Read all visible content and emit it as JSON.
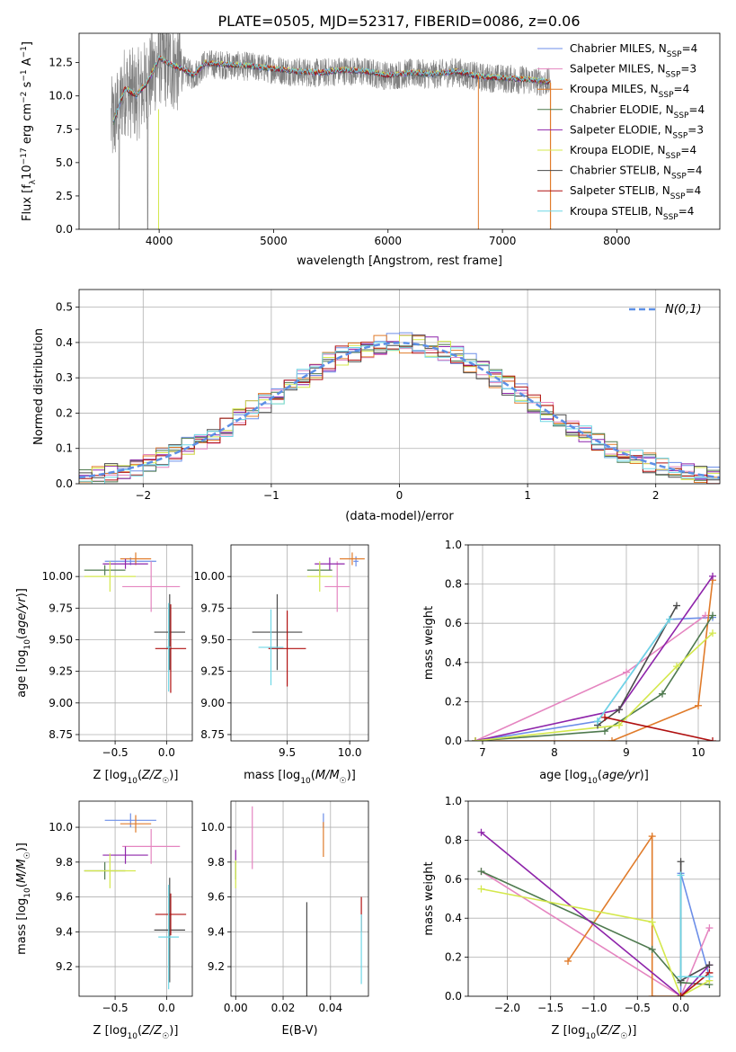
{
  "figure": {
    "title": "PLATE=0505, MJD=52317, FIBERID=0086, z=0.06"
  },
  "colors": {
    "Chabrier MILES": "#6c8ee8",
    "Salpeter MILES": "#e585c0",
    "Kroupa MILES": "#e07b2a",
    "Chabrier ELODIE": "#4f7a4f",
    "Salpeter ELODIE": "#8e24aa",
    "Kroupa ELODIE": "#d4e84c",
    "Chabrier STELIB": "#4a4a4a",
    "Salpeter STELIB": "#b01010",
    "Kroupa STELIB": "#6fd7e6",
    "data": "#7f7f7f",
    "normal": "#5c8fe6"
  },
  "chart_data": [
    {
      "id": "spectrum",
      "type": "line",
      "xlabel": "wavelength [Angstrom, rest frame]",
      "ylabel": "Flux [f_λ 10^-17 erg cm^-2 s^-1 A^-1]",
      "xlim": [
        3300,
        8900
      ],
      "ylim": [
        0,
        14.7
      ],
      "xticks": [
        4000,
        5000,
        6000,
        7000,
        8000
      ],
      "yticks": [
        0.0,
        2.5,
        5.0,
        7.5,
        10.0,
        12.5
      ],
      "grid": false,
      "legend_position": "top-right",
      "legend": [
        {
          "model": "Chabrier MILES",
          "nssp": "4"
        },
        {
          "model": "Salpeter MILES",
          "nssp": "3"
        },
        {
          "model": "Kroupa MILES",
          "nssp": "4"
        },
        {
          "model": "Chabrier ELODIE",
          "nssp": "4"
        },
        {
          "model": "Salpeter ELODIE",
          "nssp": "3"
        },
        {
          "model": "Kroupa ELODIE",
          "nssp": "4"
        },
        {
          "model": "Chabrier STELIB",
          "nssp": "4"
        },
        {
          "model": "Salpeter STELIB",
          "nssp": "4"
        },
        {
          "model": "Kroupa STELIB",
          "nssp": "4"
        }
      ],
      "data_range": [
        3580,
        7420
      ],
      "model_spectrum": {
        "wavelength": [
          3600,
          3700,
          3800,
          3900,
          4000,
          4100,
          4200,
          4300,
          4400,
          4600,
          4800,
          5000,
          5200,
          5400,
          5600,
          5800,
          6000,
          6200,
          6400,
          6600,
          6800,
          7000,
          7200,
          7400
        ],
        "flux": [
          8.0,
          10.5,
          10.0,
          11.0,
          12.8,
          12.3,
          12.0,
          11.5,
          12.4,
          12.3,
          12.2,
          12.0,
          11.8,
          11.7,
          11.9,
          11.8,
          11.5,
          11.7,
          11.6,
          11.8,
          11.4,
          11.3,
          11.2,
          11.0
        ]
      }
    },
    {
      "id": "residuals",
      "type": "line",
      "xlabel": "(data-model)/error",
      "ylabel": "Normed distribution",
      "xlim": [
        -2.5,
        2.5
      ],
      "ylim": [
        0,
        0.55
      ],
      "xticks": [
        -2,
        -1,
        0,
        1,
        2
      ],
      "yticks": [
        0.0,
        0.1,
        0.2,
        0.3,
        0.4,
        0.5
      ],
      "grid": true,
      "legend": "N(0,1)",
      "legend_position": "top-right",
      "bin_width": 0.1
    },
    {
      "id": "age_vs_Z",
      "type": "scatter",
      "xlabel": "Z [log10(Z/Z☉)]",
      "ylabel": "age [log10(age/yr)]",
      "xlim": [
        -0.85,
        0.25
      ],
      "ylim": [
        8.7,
        10.25
      ],
      "xticks": [
        -0.5,
        0.0
      ],
      "yticks": [
        8.75,
        9.0,
        9.25,
        9.5,
        9.75,
        10.0
      ],
      "grid": true,
      "points": [
        {
          "model": "Chabrier MILES",
          "x": -0.35,
          "y": 10.12,
          "xerr": 0.25,
          "yerr": 0.03
        },
        {
          "model": "Salpeter MILES",
          "x": -0.15,
          "y": 9.92,
          "xerr": 0.28,
          "yerr": 0.2
        },
        {
          "model": "Kroupa MILES",
          "x": -0.3,
          "y": 10.14,
          "xerr": 0.15,
          "yerr": 0.05
        },
        {
          "model": "Chabrier ELODIE",
          "x": -0.6,
          "y": 10.05,
          "xerr": 0.2,
          "yerr": 0.04
        },
        {
          "model": "Salpeter ELODIE",
          "x": -0.4,
          "y": 10.1,
          "xerr": 0.22,
          "yerr": 0.04
        },
        {
          "model": "Kroupa ELODIE",
          "x": -0.55,
          "y": 10.0,
          "xerr": 0.25,
          "yerr": 0.12
        },
        {
          "model": "Chabrier STELIB",
          "x": 0.03,
          "y": 9.56,
          "xerr": 0.15,
          "yerr": 0.3
        },
        {
          "model": "Salpeter STELIB",
          "x": 0.04,
          "y": 9.43,
          "xerr": 0.15,
          "yerr": 0.35
        },
        {
          "model": "Kroupa STELIB",
          "x": 0.02,
          "y": 9.44,
          "xerr": 0.02,
          "yerr": 0.35
        }
      ]
    },
    {
      "id": "age_vs_mass",
      "type": "scatter",
      "xlabel": "mass [log10(M/M☉)]",
      "ylabel": "",
      "xlim": [
        9.05,
        10.15
      ],
      "ylim": [
        8.7,
        10.25
      ],
      "xticks": [
        9.5,
        10.0
      ],
      "yticks": [
        8.75,
        9.0,
        9.25,
        9.5,
        9.75,
        10.0
      ],
      "grid": true,
      "points": [
        {
          "model": "Chabrier MILES",
          "x": 10.05,
          "y": 10.12,
          "xerr": 0.02,
          "yerr": 0.04
        },
        {
          "model": "Salpeter MILES",
          "x": 9.9,
          "y": 9.92,
          "xerr": 0.1,
          "yerr": 0.2
        },
        {
          "model": "Kroupa MILES",
          "x": 10.02,
          "y": 10.14,
          "xerr": 0.1,
          "yerr": 0.05
        },
        {
          "model": "Chabrier ELODIE",
          "x": 9.76,
          "y": 10.05,
          "xerr": 0.1,
          "yerr": 0.05
        },
        {
          "model": "Salpeter ELODIE",
          "x": 9.84,
          "y": 10.1,
          "xerr": 0.12,
          "yerr": 0.05
        },
        {
          "model": "Kroupa ELODIE",
          "x": 9.76,
          "y": 10.0,
          "xerr": 0.1,
          "yerr": 0.12
        },
        {
          "model": "Chabrier STELIB",
          "x": 9.42,
          "y": 9.56,
          "xerr": 0.2,
          "yerr": 0.3
        },
        {
          "model": "Salpeter STELIB",
          "x": 9.5,
          "y": 9.43,
          "xerr": 0.15,
          "yerr": 0.3
        },
        {
          "model": "Kroupa STELIB",
          "x": 9.37,
          "y": 9.44,
          "xerr": 0.1,
          "yerr": 0.3
        }
      ]
    },
    {
      "id": "weight_vs_age",
      "type": "line",
      "xlabel": "age [log10(age/yr)]",
      "ylabel": "mass weight",
      "xlim": [
        6.8,
        10.3
      ],
      "ylim": [
        0,
        1.0
      ],
      "xticks": [
        7,
        8,
        9,
        10
      ],
      "yticks": [
        0.0,
        0.2,
        0.4,
        0.6,
        0.8,
        1.0
      ],
      "grid": true,
      "series": [
        {
          "model": "Chabrier MILES",
          "x": [
            6.9,
            8.6,
            9.6,
            10.2
          ],
          "y": [
            0.0,
            0.1,
            0.62,
            0.63
          ]
        },
        {
          "model": "Salpeter MILES",
          "x": [
            6.9,
            9.0,
            10.1
          ],
          "y": [
            0.0,
            0.35,
            0.64
          ]
        },
        {
          "model": "Kroupa MILES",
          "x": [
            6.9,
            8.8,
            10.0,
            10.2
          ],
          "y": [
            0.0,
            0.0,
            0.18,
            0.82
          ]
        },
        {
          "model": "Chabrier ELODIE",
          "x": [
            6.9,
            8.7,
            9.5,
            10.2
          ],
          "y": [
            0.0,
            0.05,
            0.24,
            0.64
          ]
        },
        {
          "model": "Salpeter ELODIE",
          "x": [
            6.9,
            8.9,
            10.2
          ],
          "y": [
            0.0,
            0.16,
            0.84
          ]
        },
        {
          "model": "Kroupa ELODIE",
          "x": [
            6.9,
            8.9,
            9.7,
            10.2
          ],
          "y": [
            0.0,
            0.08,
            0.38,
            0.55
          ]
        },
        {
          "model": "Chabrier STELIB",
          "x": [
            8.6,
            8.9,
            9.7
          ],
          "y": [
            0.08,
            0.16,
            0.69
          ]
        },
        {
          "model": "Salpeter STELIB",
          "x": [
            8.7,
            10.2
          ],
          "y": [
            0.12,
            0.0
          ]
        },
        {
          "model": "Kroupa STELIB",
          "x": [
            8.6,
            9.6
          ],
          "y": [
            0.1,
            0.62
          ]
        }
      ]
    },
    {
      "id": "mass_vs_Z",
      "type": "scatter",
      "xlabel": "Z [log10(Z/Z☉)]",
      "ylabel": "mass [log10(M/M☉)]",
      "xlim": [
        -0.85,
        0.25
      ],
      "ylim": [
        9.03,
        10.15
      ],
      "xticks": [
        -0.5,
        0.0
      ],
      "yticks": [
        9.2,
        9.4,
        9.6,
        9.8,
        10.0
      ],
      "grid": true,
      "points": [
        {
          "model": "Chabrier MILES",
          "x": -0.35,
          "y": 10.04,
          "xerr": 0.25,
          "yerr": 0.04
        },
        {
          "model": "Salpeter MILES",
          "x": -0.15,
          "y": 9.89,
          "xerr": 0.28,
          "yerr": 0.1
        },
        {
          "model": "Kroupa MILES",
          "x": -0.3,
          "y": 10.02,
          "xerr": 0.15,
          "yerr": 0.05
        },
        {
          "model": "Chabrier ELODIE",
          "x": -0.6,
          "y": 9.75,
          "xerr": 0.2,
          "yerr": 0.05
        },
        {
          "model": "Salpeter ELODIE",
          "x": -0.4,
          "y": 9.84,
          "xerr": 0.22,
          "yerr": 0.05
        },
        {
          "model": "Kroupa ELODIE",
          "x": -0.55,
          "y": 9.75,
          "xerr": 0.25,
          "yerr": 0.1
        },
        {
          "model": "Chabrier STELIB",
          "x": 0.03,
          "y": 9.41,
          "xerr": 0.15,
          "yerr": 0.3
        },
        {
          "model": "Salpeter STELIB",
          "x": 0.04,
          "y": 9.5,
          "xerr": 0.15,
          "yerr": 0.12
        },
        {
          "model": "Kroupa STELIB",
          "x": 0.02,
          "y": 9.37,
          "xerr": 0.1,
          "yerr": 0.3
        }
      ]
    },
    {
      "id": "mass_vs_ebv",
      "type": "scatter",
      "xlabel": "E(B-V)",
      "ylabel": "",
      "xlim": [
        -0.002,
        0.056
      ],
      "ylim": [
        9.03,
        10.15
      ],
      "xticks": [
        0.0,
        0.02,
        0.04
      ],
      "yticks": [
        9.2,
        9.4,
        9.6,
        9.8,
        10.0
      ],
      "grid": true,
      "points": [
        {
          "model": "Chabrier MILES",
          "x": 0.037,
          "y": 10.04,
          "yerr": 0.04
        },
        {
          "model": "Salpeter MILES",
          "x": 0.007,
          "y": 9.94,
          "yerr": 0.18
        },
        {
          "model": "Kroupa MILES",
          "x": 0.037,
          "y": 9.93,
          "yerr": 0.1
        },
        {
          "model": "Chabrier ELODIE",
          "x": 0.0,
          "y": 9.75,
          "yerr": 0.05
        },
        {
          "model": "Salpeter ELODIE",
          "x": 0.0,
          "y": 9.84,
          "yerr": 0.03
        },
        {
          "model": "Kroupa ELODIE",
          "x": 0.0,
          "y": 9.73,
          "yerr": 0.08
        },
        {
          "model": "Chabrier STELIB",
          "x": 0.03,
          "y": 9.25,
          "yerr": 0.32
        },
        {
          "model": "Salpeter STELIB",
          "x": 0.053,
          "y": 9.5,
          "yerr": 0.1
        },
        {
          "model": "Kroupa STELIB",
          "x": 0.053,
          "y": 9.3,
          "yerr": 0.2
        }
      ]
    },
    {
      "id": "weight_vs_Z",
      "type": "line",
      "xlabel": "Z [log10(Z/Z☉)]",
      "ylabel": "mass weight",
      "xlim": [
        -2.45,
        0.45
      ],
      "ylim": [
        0,
        1.0
      ],
      "xticks": [
        -2.0,
        -1.5,
        -1.0,
        -0.5,
        0.0
      ],
      "yticks": [
        0.0,
        0.2,
        0.4,
        0.6,
        0.8,
        1.0
      ],
      "grid": true,
      "series": [
        {
          "model": "Chabrier MILES",
          "x": [
            0.0,
            0.0,
            0.33
          ],
          "y": [
            0.0,
            0.63,
            0.1
          ]
        },
        {
          "model": "Salpeter MILES",
          "x": [
            -2.3,
            0.0,
            0.0,
            0.33
          ],
          "y": [
            0.64,
            0.0,
            0.0,
            0.35
          ]
        },
        {
          "model": "Kroupa MILES",
          "x": [
            -1.3,
            -0.33,
            -0.33,
            0.0
          ],
          "y": [
            0.18,
            0.82,
            0.0,
            0.0
          ]
        },
        {
          "model": "Chabrier ELODIE",
          "x": [
            -2.3,
            -0.33,
            0.0,
            0.33
          ],
          "y": [
            0.64,
            0.24,
            0.07,
            0.06
          ]
        },
        {
          "model": "Salpeter ELODIE",
          "x": [
            -2.3,
            0.0,
            0.33
          ],
          "y": [
            0.84,
            0.0,
            0.16
          ]
        },
        {
          "model": "Kroupa ELODIE",
          "x": [
            -2.3,
            -0.33,
            0.0,
            0.33
          ],
          "y": [
            0.55,
            0.38,
            0.0,
            0.08
          ]
        },
        {
          "model": "Chabrier STELIB",
          "x": [
            0.0,
            0.0,
            0.33
          ],
          "y": [
            0.69,
            0.08,
            0.16
          ]
        },
        {
          "model": "Salpeter STELIB",
          "x": [
            0.0,
            0.33
          ],
          "y": [
            0.0,
            0.12
          ]
        },
        {
          "model": "Kroupa STELIB",
          "x": [
            0.0,
            0.0,
            0.33
          ],
          "y": [
            0.62,
            0.1,
            0.1
          ]
        }
      ]
    }
  ]
}
